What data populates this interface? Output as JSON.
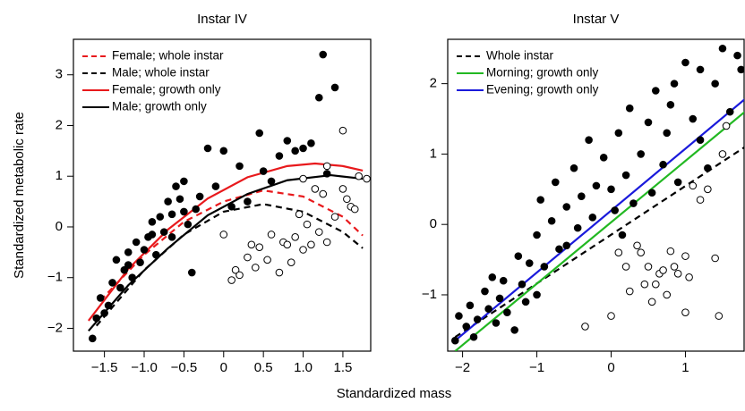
{
  "xlabel": "Standardized mass",
  "chart_data": [
    {
      "type": "scatter",
      "title": "Instar IV",
      "ylabel": "Standardized metabolic rate",
      "xlim": [
        -1.89,
        1.85
      ],
      "ylim": [
        -2.45,
        3.7
      ],
      "xticks": [
        {
          "value": -1.5,
          "label": "−1.5"
        },
        {
          "value": -1.0,
          "label": "−1.0"
        },
        {
          "value": -0.5,
          "label": "−0.5"
        },
        0,
        0.5,
        {
          "value": 1.0,
          "label": "1.0"
        },
        1.5
      ],
      "yticks": [
        {
          "value": -2,
          "label": "−2"
        },
        {
          "value": -1,
          "label": "−1"
        },
        0,
        1,
        2,
        3
      ],
      "legend": "top-left",
      "series": [
        {
          "name": "Female; whole instar",
          "kind": "line",
          "dash": true,
          "color": "#e8191c",
          "x": [
            -1.55,
            -1.0,
            -0.5,
            0,
            0.5,
            1.0,
            1.5,
            1.75
          ],
          "values": [
            -1.45,
            -0.55,
            0.1,
            0.5,
            0.72,
            0.6,
            0.2,
            -0.17
          ]
        },
        {
          "name": "Male; whole instar",
          "kind": "line",
          "dash": true,
          "color": "#000000",
          "x": [
            -1.6,
            -1.0,
            -0.5,
            0,
            0.5,
            1.0,
            1.5,
            1.75
          ],
          "values": [
            -1.95,
            -0.85,
            -0.15,
            0.3,
            0.45,
            0.3,
            -0.1,
            -0.42
          ]
        },
        {
          "name": "Female; growth only",
          "kind": "line",
          "dash": false,
          "color": "#e8191c",
          "x": [
            -1.7,
            -1.2,
            -0.7,
            -0.2,
            0.3,
            0.8,
            1.15,
            1.5,
            1.75
          ],
          "values": [
            -1.85,
            -0.83,
            -0.05,
            0.56,
            0.98,
            1.2,
            1.25,
            1.2,
            1.11
          ]
        },
        {
          "name": "Male; growth only",
          "kind": "line",
          "dash": false,
          "color": "#000000",
          "x": [
            -1.7,
            -1.2,
            -0.7,
            -0.2,
            0.3,
            0.8,
            1.35,
            1.75
          ],
          "values": [
            -2.05,
            -1.15,
            -0.42,
            0.23,
            0.65,
            0.92,
            1.02,
            0.95
          ]
        },
        {
          "kind": "scatter",
          "marker": "filled",
          "color": "#000000",
          "x": [
            -1.65,
            -1.6,
            -1.55,
            -1.5,
            -1.45,
            -1.4,
            -1.35,
            -1.3,
            -1.25,
            -1.2,
            -1.15,
            -1.1,
            -1.05,
            -1.0,
            -0.95,
            -0.9,
            -0.85,
            -0.8,
            -0.75,
            -0.7,
            -0.65,
            -0.6,
            -0.55,
            -0.5,
            -0.45,
            -0.4,
            -0.35,
            -0.3,
            -0.2,
            -0.1,
            0.0,
            0.1,
            0.2,
            0.3,
            0.45,
            0.5,
            0.6,
            0.7,
            0.8,
            0.9,
            1.0,
            1.1,
            1.2,
            1.25,
            1.4,
            1.3,
            -0.65,
            -0.9,
            -1.2,
            -0.5
          ],
          "values": [
            -2.2,
            -1.8,
            -1.4,
            -1.7,
            -1.55,
            -1.1,
            -0.65,
            -1.2,
            -0.85,
            -0.5,
            -1.0,
            -0.3,
            -0.7,
            -0.45,
            -0.2,
            0.1,
            -0.55,
            0.2,
            -0.1,
            0.5,
            0.25,
            0.8,
            0.55,
            0.9,
            0.05,
            -0.9,
            0.35,
            0.6,
            1.55,
            0.8,
            1.5,
            0.4,
            1.2,
            0.5,
            1.85,
            1.1,
            0.9,
            1.4,
            1.7,
            1.5,
            1.55,
            1.65,
            2.55,
            3.4,
            2.75,
            1.05,
            -0.2,
            -0.15,
            -0.75,
            0.3
          ]
        },
        {
          "kind": "scatter",
          "marker": "open",
          "color": "#000000",
          "x": [
            0.0,
            0.1,
            0.15,
            0.2,
            0.3,
            0.35,
            0.4,
            0.45,
            0.55,
            0.6,
            0.7,
            0.75,
            0.8,
            0.85,
            0.9,
            0.95,
            1.0,
            1.05,
            1.1,
            1.2,
            1.3,
            1.4,
            1.5,
            1.55,
            1.6,
            1.65,
            1.5,
            1.3,
            1.15,
            1.8,
            1.7,
            1.0,
            1.25
          ],
          "values": [
            -0.15,
            -1.05,
            -0.85,
            -0.95,
            -0.6,
            -0.35,
            -0.8,
            -0.4,
            -0.65,
            -0.15,
            -0.9,
            -0.3,
            -0.35,
            -0.7,
            -0.2,
            0.25,
            -0.45,
            0.05,
            -0.35,
            -0.1,
            1.2,
            0.2,
            0.75,
            0.55,
            0.4,
            0.35,
            1.9,
            -0.3,
            0.75,
            0.95,
            1.0,
            0.95,
            0.65
          ]
        }
      ]
    },
    {
      "type": "scatter",
      "title": "Instar V",
      "xlim": [
        -2.2,
        1.79
      ],
      "ylim": [
        -1.8,
        2.63
      ],
      "xticks": [
        {
          "value": -2,
          "label": "−2"
        },
        {
          "value": -1,
          "label": "−1"
        },
        0,
        1
      ],
      "yticks": [
        {
          "value": -1,
          "label": "−1"
        },
        0,
        1,
        2
      ],
      "legend": "top-left",
      "series": [
        {
          "name": "Whole instar",
          "kind": "line",
          "dash": true,
          "color": "#000000",
          "x": [
            -2.1,
            1.8
          ],
          "values": [
            -1.6,
            1.1
          ]
        },
        {
          "name": "Morning; growth only",
          "kind": "line",
          "dash": false,
          "color": "#22b822",
          "x": [
            -2.1,
            1.8
          ],
          "values": [
            -1.8,
            1.6
          ]
        },
        {
          "name": "Evening; growth only",
          "kind": "line",
          "dash": false,
          "color": "#1a1adb",
          "x": [
            -2.1,
            1.8
          ],
          "values": [
            -1.65,
            1.78
          ]
        },
        {
          "kind": "scatter",
          "marker": "filled",
          "color": "#000000",
          "x": [
            -2.1,
            -2.05,
            -1.95,
            -1.9,
            -1.85,
            -1.8,
            -1.7,
            -1.65,
            -1.6,
            -1.55,
            -1.5,
            -1.45,
            -1.4,
            -1.3,
            -1.25,
            -1.2,
            -1.15,
            -1.1,
            -1.0,
            -0.95,
            -0.9,
            -0.8,
            -0.75,
            -0.7,
            -0.6,
            -0.5,
            -0.45,
            -0.4,
            -0.3,
            -0.25,
            -0.2,
            -0.1,
            0.0,
            0.05,
            0.1,
            0.2,
            0.25,
            0.3,
            0.4,
            0.5,
            0.55,
            0.6,
            0.7,
            0.75,
            0.8,
            0.85,
            0.9,
            1.0,
            1.1,
            1.2,
            1.3,
            1.4,
            1.5,
            1.6,
            1.7,
            1.75,
            -1.0,
            -0.6,
            0.15,
            1.2
          ],
          "values": [
            -1.65,
            -1.3,
            -1.45,
            -1.15,
            -1.6,
            -1.35,
            -0.95,
            -1.2,
            -0.75,
            -1.4,
            -1.05,
            -0.8,
            -1.25,
            -1.5,
            -0.45,
            -0.85,
            -1.1,
            -0.55,
            -0.15,
            0.35,
            -0.6,
            0.05,
            0.6,
            -0.35,
            0.25,
            0.8,
            -0.05,
            0.4,
            1.2,
            0.1,
            0.55,
            0.95,
            0.5,
            0.2,
            1.3,
            0.7,
            1.65,
            0.3,
            1.0,
            1.45,
            0.45,
            1.9,
            0.85,
            1.3,
            1.7,
            2.0,
            0.6,
            2.3,
            1.5,
            2.2,
            0.8,
            2.0,
            2.5,
            1.6,
            2.4,
            2.2,
            -1.0,
            -0.3,
            -0.15,
            1.2
          ]
        },
        {
          "kind": "scatter",
          "marker": "open",
          "color": "#000000",
          "x": [
            0.0,
            0.1,
            0.2,
            0.25,
            0.35,
            0.4,
            0.5,
            0.55,
            0.6,
            0.65,
            0.7,
            0.8,
            0.85,
            0.9,
            1.0,
            1.1,
            1.2,
            1.3,
            1.4,
            1.45,
            1.5,
            1.55,
            -0.35,
            0.45,
            0.75,
            1.05,
            1.0
          ],
          "values": [
            -1.3,
            -0.4,
            -0.6,
            -0.95,
            -0.3,
            -0.4,
            -0.6,
            -1.1,
            -0.85,
            -0.7,
            -0.65,
            -0.38,
            -0.6,
            -0.7,
            -0.45,
            0.55,
            0.35,
            0.5,
            -0.48,
            -1.3,
            1.0,
            1.4,
            -1.45,
            -0.85,
            -1.0,
            -0.75,
            -1.25
          ]
        }
      ]
    }
  ]
}
